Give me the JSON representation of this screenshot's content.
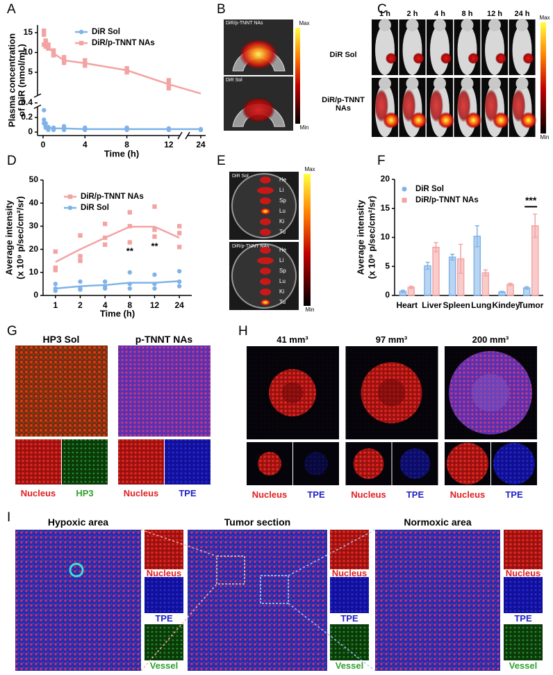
{
  "figure": {
    "panel_labels": [
      "A",
      "B",
      "C",
      "D",
      "E",
      "F",
      "G",
      "H",
      "I"
    ]
  },
  "chart_data": [
    {
      "type": "line",
      "ylabel": [
        "Plasma concentration",
        "of DiR (nmol/mL)"
      ],
      "xlabel": "Time (h)",
      "x": [
        0.083,
        0.25,
        0.5,
        1,
        2,
        4,
        8,
        12,
        24
      ],
      "xlim": [
        0,
        24
      ],
      "xticks": [
        0,
        4,
        8,
        12,
        24
      ],
      "ylim": [
        0,
        16
      ],
      "yticks": [
        0,
        0.2,
        0.4,
        5,
        10,
        15
      ],
      "x_axis_break": true,
      "y_axis_break": true,
      "legend": "upper center",
      "series": [
        {
          "name": "DiR Sol",
          "color": "#7fb3e8",
          "marker": "circle",
          "values": [
            0.2,
            0.1,
            0.06,
            0.05,
            0.05,
            0.04,
            0.04,
            0.04,
            0.04
          ],
          "replicates": [
            [
              0.3,
              0.17,
              0.12
            ],
            [
              0.12,
              0.08,
              0.06
            ],
            [
              0.07,
              0.05,
              0.03
            ],
            [
              0.06,
              0.04,
              0.03
            ],
            [
              0.08,
              0.05,
              0.03
            ],
            [
              0.06,
              0.04,
              0.03
            ],
            [
              0.06,
              0.05,
              0.03
            ],
            [
              0.05,
              0.04,
              0.03
            ],
            [
              0.04,
              0.03,
              0.03
            ]
          ]
        },
        {
          "name": "DiR/p-TNNT NAs",
          "color": "#f4a3a3",
          "marker": "square",
          "values": [
            13.5,
            12.3,
            11.5,
            9.8,
            8,
            7.3,
            5.5,
            3.2,
            1.8
          ],
          "replicates": [
            [
              15.5,
              14.5,
              12
            ],
            [
              13,
              12.5,
              11.5
            ],
            [
              12,
              11.5,
              11
            ],
            [
              10.5,
              9.5,
              9.3
            ],
            [
              8.8,
              7.8,
              7.4
            ],
            [
              8,
              7.2,
              6.7
            ],
            [
              6,
              5.5,
              5
            ],
            [
              3.8,
              3.2,
              2.6
            ],
            []
          ]
        }
      ]
    },
    {
      "type": "line",
      "ylabel": [
        "Average intensity",
        "(x 10⁹ p/sec/cm²/sr)"
      ],
      "xlabel": "Time (h)",
      "categories": [
        "1",
        "2",
        "4",
        "8",
        "12",
        "24"
      ],
      "ylim": [
        0,
        50
      ],
      "yticks": [
        0,
        10,
        20,
        30,
        40,
        50
      ],
      "legend": "upper left",
      "series": [
        {
          "name": "DiR/p-TNNT NAs",
          "color": "#f4a3a3",
          "marker": "square",
          "values": [
            14.5,
            20,
            25,
            29.8,
            29.8,
            25
          ],
          "replicates": [
            [
              19,
              12,
              11
            ],
            [
              26,
              17,
              15
            ],
            [
              31,
              25,
              22
            ],
            [
              36,
              30,
              23
            ],
            [
              38.5,
              28.5,
              25.5
            ],
            [
              30,
              27,
              21
            ]
          ]
        },
        {
          "name": "DiR Sol",
          "color": "#7fb3e8",
          "marker": "circle",
          "values": [
            3,
            4,
            4.5,
            5.5,
            5.5,
            6.2
          ],
          "replicates": [
            [
              5,
              3,
              2
            ],
            [
              6,
              3,
              2.5
            ],
            [
              6,
              4,
              3
            ],
            [
              10,
              5,
              3
            ],
            [
              9,
              5,
              3
            ],
            [
              10.5,
              6,
              4
            ]
          ]
        }
      ],
      "annotations": [
        {
          "text": "**",
          "x": "8",
          "y": 19
        },
        {
          "text": "**",
          "x": "12",
          "y": 21
        }
      ]
    },
    {
      "type": "bar",
      "ylabel": [
        "Average intensity",
        "(x 10⁹ p/sec/cm²/sr)"
      ],
      "categories": [
        "Heart",
        "Liver",
        "Spleen",
        "Lung",
        "Kindey",
        "Tumor"
      ],
      "ylim": [
        0,
        20
      ],
      "yticks": [
        0,
        5,
        10,
        15,
        20
      ],
      "legend": "upper left",
      "series": [
        {
          "name": "DiR Sol",
          "color": "#7fb3e8",
          "values": [
            0.7,
            5.1,
            6.6,
            10.2,
            0.6,
            1.3
          ],
          "errors": [
            0.2,
            0.6,
            0.5,
            1.8,
            0.1,
            0.2
          ]
        },
        {
          "name": "DiR/p-TNNT NAs",
          "color": "#f4a3a3",
          "values": [
            1.4,
            8.3,
            6.3,
            3.9,
            1.9,
            12
          ],
          "errors": [
            0.2,
            0.8,
            2.5,
            0.5,
            0.2,
            2
          ]
        }
      ],
      "annotations": [
        {
          "text": "***",
          "x": "Tumor",
          "y": 16
        }
      ]
    }
  ],
  "panel_b": {
    "groups": [
      "DiR/p-TNNT NAs",
      "DiR Sol"
    ],
    "colorbar": [
      "Max",
      "Min"
    ]
  },
  "panel_c": {
    "times": [
      "1 h",
      "2 h",
      "4 h",
      "8 h",
      "12 h",
      "24 h"
    ],
    "rows": [
      "DiR Sol",
      "DiR/p-TNNT NAs"
    ],
    "colorbar": [
      "Max",
      "Min"
    ]
  },
  "panel_e": {
    "groups": [
      "DiR Sol",
      "DiR/p-TNNT NAs"
    ],
    "organs": [
      "He",
      "Li",
      "Sp",
      "Lu",
      "Ki",
      "Tu"
    ],
    "colorbar": [
      "Max",
      "Min"
    ]
  },
  "panel_g": {
    "groups": [
      {
        "title": "HP3 Sol",
        "channels": [
          {
            "name": "Nucleus",
            "color": "#e02020"
          },
          {
            "name": "HP3",
            "color": "#30a030"
          }
        ]
      },
      {
        "title": "p-TNNT NAs",
        "channels": [
          {
            "name": "Nucleus",
            "color": "#e02020"
          },
          {
            "name": "TPE",
            "color": "#2020c8"
          }
        ]
      }
    ]
  },
  "panel_h": {
    "groups": [
      {
        "title": "41 mm³",
        "channels": [
          {
            "name": "Nucleus",
            "color": "#e02020"
          },
          {
            "name": "TPE",
            "color": "#2020c8"
          }
        ]
      },
      {
        "title": "97 mm³",
        "channels": [
          {
            "name": "Nucleus",
            "color": "#e02020"
          },
          {
            "name": "TPE",
            "color": "#2020c8"
          }
        ]
      },
      {
        "title": "200 mm³",
        "channels": [
          {
            "name": "Nucleus",
            "color": "#e02020"
          },
          {
            "name": "TPE",
            "color": "#2020c8"
          }
        ]
      }
    ]
  },
  "panel_i": {
    "regions": [
      {
        "title": "Hypoxic area",
        "channels": [
          {
            "name": "Nucleus",
            "color": "#e02020"
          },
          {
            "name": "TPE",
            "color": "#2020c8"
          },
          {
            "name": "Vessel",
            "color": "#30a030"
          }
        ]
      },
      {
        "title": "Tumor section",
        "channels": [
          {
            "name": "Nucleus",
            "color": "#e02020"
          },
          {
            "name": "TPE",
            "color": "#2020c8"
          },
          {
            "name": "Vessel",
            "color": "#30a030"
          }
        ]
      },
      {
        "title": "Normoxic area",
        "channels": [
          {
            "name": "Nucleus",
            "color": "#e02020"
          },
          {
            "name": "TPE",
            "color": "#2020c8"
          },
          {
            "name": "Vessel",
            "color": "#30a030"
          }
        ]
      }
    ]
  }
}
